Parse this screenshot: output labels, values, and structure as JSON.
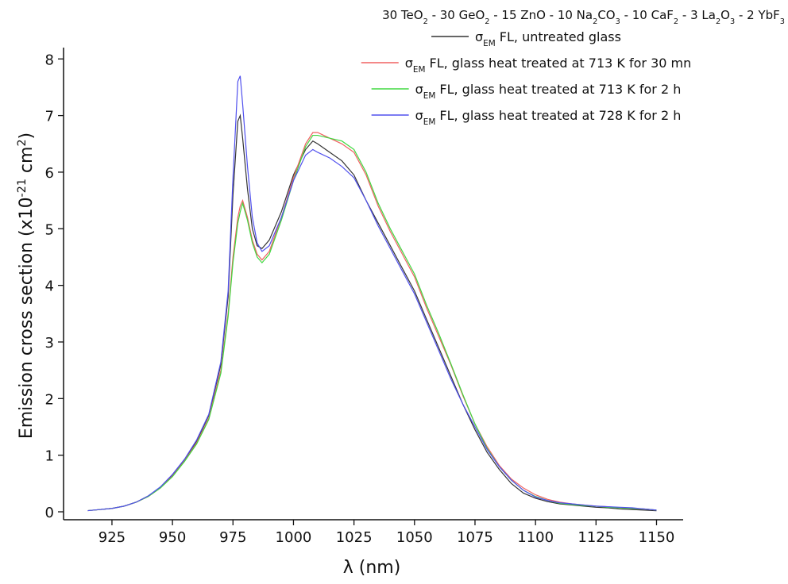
{
  "chart_data": {
    "type": "line",
    "title": [
      "30 TeO",
      "2",
      " - 30 GeO",
      "2",
      " - 15 ZnO - 10 Na",
      "2",
      "CO",
      "3",
      " - 10 CaF",
      "2",
      " - 3 La",
      "2",
      "O",
      "3",
      " - 2 YbF",
      "3"
    ],
    "x_label": "λ (nm)",
    "y_label": [
      "Emission cross section (x10",
      "-21",
      " cm",
      "2",
      ")"
    ],
    "x": [
      915,
      920,
      925,
      930,
      935,
      940,
      945,
      950,
      955,
      960,
      965,
      970,
      973,
      975,
      977,
      978,
      979,
      981,
      983,
      985,
      987,
      990,
      995,
      1000,
      1005,
      1008,
      1010,
      1015,
      1020,
      1025,
      1030,
      1035,
      1040,
      1045,
      1050,
      1055,
      1060,
      1065,
      1070,
      1075,
      1080,
      1085,
      1090,
      1095,
      1100,
      1105,
      1110,
      1115,
      1120,
      1125,
      1130,
      1135,
      1140,
      1145,
      1150
    ],
    "series": [
      {
        "name": [
          "σ",
          "EM",
          " FL, untreated glass"
        ],
        "color": "#333333",
        "values": [
          0.02,
          0.04,
          0.06,
          0.1,
          0.17,
          0.28,
          0.43,
          0.65,
          0.92,
          1.25,
          1.7,
          2.6,
          3.8,
          5.6,
          6.9,
          7.0,
          6.6,
          5.7,
          5.0,
          4.7,
          4.65,
          4.8,
          5.3,
          5.95,
          6.4,
          6.55,
          6.5,
          6.35,
          6.2,
          5.95,
          5.5,
          5.1,
          4.7,
          4.3,
          3.9,
          3.4,
          2.9,
          2.4,
          1.9,
          1.45,
          1.05,
          0.75,
          0.5,
          0.33,
          0.24,
          0.18,
          0.14,
          0.12,
          0.1,
          0.08,
          0.07,
          0.05,
          0.04,
          0.03,
          0.02
        ]
      },
      {
        "name": [
          "σ",
          "EM",
          " FL, glass heat treated at 713 K for 30 mn"
        ],
        "color": "#f06060",
        "values": [
          0.02,
          0.04,
          0.06,
          0.1,
          0.17,
          0.27,
          0.42,
          0.63,
          0.9,
          1.22,
          1.65,
          2.5,
          3.5,
          4.5,
          5.2,
          5.4,
          5.5,
          5.2,
          4.8,
          4.55,
          4.45,
          4.6,
          5.2,
          5.9,
          6.5,
          6.7,
          6.7,
          6.6,
          6.5,
          6.35,
          5.95,
          5.4,
          4.95,
          4.55,
          4.15,
          3.6,
          3.1,
          2.6,
          2.05,
          1.55,
          1.15,
          0.82,
          0.58,
          0.42,
          0.3,
          0.22,
          0.17,
          0.14,
          0.12,
          0.1,
          0.09,
          0.07,
          0.06,
          0.05,
          0.03
        ]
      },
      {
        "name": [
          "σ",
          "EM",
          " FL, glass heat treated at 713 K for 2 h"
        ],
        "color": "#40d840",
        "values": [
          0.02,
          0.04,
          0.06,
          0.1,
          0.17,
          0.27,
          0.42,
          0.62,
          0.89,
          1.2,
          1.63,
          2.45,
          3.45,
          4.4,
          5.1,
          5.3,
          5.45,
          5.15,
          4.75,
          4.5,
          4.4,
          4.55,
          5.15,
          5.85,
          6.45,
          6.65,
          6.65,
          6.6,
          6.55,
          6.4,
          6.0,
          5.45,
          5.0,
          4.6,
          4.2,
          3.65,
          3.15,
          2.62,
          2.07,
          1.55,
          1.12,
          0.8,
          0.56,
          0.38,
          0.27,
          0.2,
          0.15,
          0.13,
          0.11,
          0.1,
          0.08,
          0.07,
          0.06,
          0.05,
          0.03
        ]
      },
      {
        "name": [
          "σ",
          "EM",
          " FL, glass heat treated at 728 K for 2 h"
        ],
        "color": "#5050ee",
        "values": [
          0.02,
          0.04,
          0.06,
          0.1,
          0.17,
          0.28,
          0.44,
          0.66,
          0.93,
          1.27,
          1.72,
          2.65,
          3.9,
          5.9,
          7.6,
          7.7,
          7.2,
          6.1,
          5.2,
          4.75,
          4.6,
          4.7,
          5.2,
          5.85,
          6.3,
          6.4,
          6.35,
          6.25,
          6.1,
          5.9,
          5.5,
          5.05,
          4.65,
          4.25,
          3.85,
          3.35,
          2.85,
          2.35,
          1.9,
          1.5,
          1.1,
          0.8,
          0.56,
          0.38,
          0.26,
          0.2,
          0.16,
          0.14,
          0.12,
          0.1,
          0.09,
          0.08,
          0.07,
          0.05,
          0.03
        ]
      }
    ],
    "legend": "upper right",
    "xlim": [
      905,
      1161
    ],
    "xticks": [
      925,
      950,
      975,
      1000,
      1025,
      1050,
      1075,
      1100,
      1125,
      1150
    ],
    "ylim": [
      -0.14,
      8.2
    ],
    "yticks": [
      0,
      1,
      2,
      3,
      4,
      5,
      6,
      7,
      8
    ],
    "grid": false
  }
}
